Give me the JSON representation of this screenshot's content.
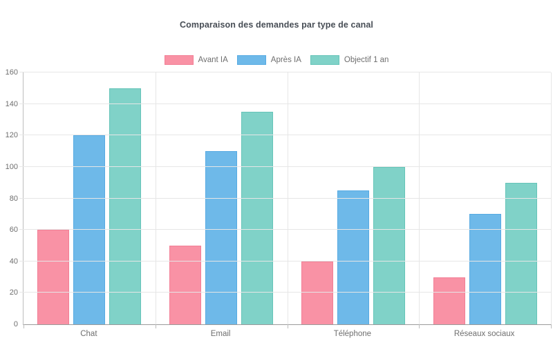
{
  "header": {
    "title": "Comparaison des demandes par type de canal"
  },
  "chart_data": {
    "type": "bar",
    "title": "Comparaison des demandes par type de canal",
    "categories": [
      "Chat",
      "Email",
      "Téléphone",
      "Réseaux sociaux"
    ],
    "series": [
      {
        "name": "Avant IA",
        "color": "#F992A5",
        "border_color": "#F27E95",
        "values": [
          60,
          50,
          40,
          30
        ]
      },
      {
        "name": "Après IA",
        "color": "#6EB9E9",
        "border_color": "#57AAE2",
        "values": [
          120,
          110,
          85,
          70
        ]
      },
      {
        "name": "Objectif 1 an",
        "color": "#80D2C8",
        "border_color": "#65C4B8",
        "values": [
          150,
          135,
          100,
          90
        ]
      }
    ],
    "xlabel": "",
    "ylabel": "",
    "ylim": [
      0,
      160
    ],
    "yticks": [
      0,
      20,
      40,
      60,
      80,
      100,
      120,
      140,
      160
    ],
    "grid": true,
    "legend_position": "top"
  },
  "colors": {
    "title": "#474d55",
    "axis_label": "#6e6e6e",
    "gridline": "#e6e6e6",
    "axis_line": "#bdbdbd",
    "zero_line": "#9a9a9a",
    "background": "#ffffff"
  }
}
